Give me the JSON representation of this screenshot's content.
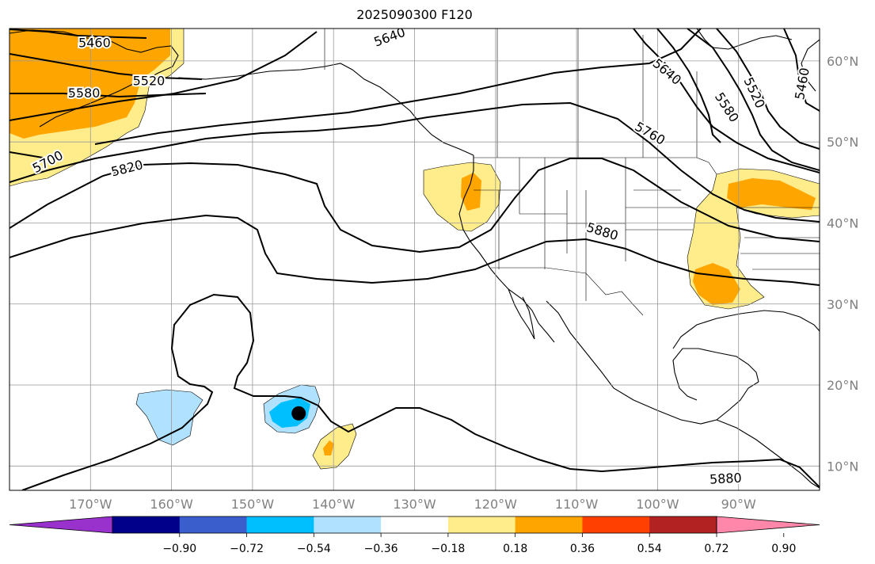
{
  "title": "2025090300 F120",
  "map": {
    "projection": "PlateCarree",
    "extent_lon": [
      -180,
      -80
    ],
    "extent_lat": [
      7,
      64
    ],
    "lon_ticks": [
      {
        "lon": -170,
        "label": "170°W"
      },
      {
        "lon": -160,
        "label": "160°W"
      },
      {
        "lon": -150,
        "label": "150°W"
      },
      {
        "lon": -140,
        "label": "140°W"
      },
      {
        "lon": -130,
        "label": "130°W"
      },
      {
        "lon": -120,
        "label": "120°W"
      },
      {
        "lon": -110,
        "label": "110°W"
      },
      {
        "lon": -100,
        "label": "100°W"
      },
      {
        "lon": -90,
        "label": "90°W"
      }
    ],
    "lat_ticks": [
      {
        "lat": 10,
        "label": "10°N"
      },
      {
        "lat": 20,
        "label": "20°N"
      },
      {
        "lat": 30,
        "label": "30°N"
      },
      {
        "lat": 40,
        "label": "40°N"
      },
      {
        "lat": 50,
        "label": "50°N"
      },
      {
        "lat": 60,
        "label": "60°N"
      }
    ],
    "contour_labels": [
      {
        "text": "5460",
        "lon": -169.5,
        "lat": 62.3,
        "angle": 0
      },
      {
        "text": "5520",
        "lon": -162.8,
        "lat": 57.6,
        "angle": 0
      },
      {
        "text": "5580",
        "lon": -170.8,
        "lat": 56.1,
        "angle": 0
      },
      {
        "text": "5700",
        "lon": -175.3,
        "lat": 47.6,
        "angle": -28
      },
      {
        "text": "5820",
        "lon": -165.5,
        "lat": 46.8,
        "angle": -14
      },
      {
        "text": "5640",
        "lon": -133.1,
        "lat": 63.0,
        "angle": -20
      },
      {
        "text": "5640",
        "lon": -98.8,
        "lat": 58.7,
        "angle": 40
      },
      {
        "text": "5580",
        "lon": -91.4,
        "lat": 54.3,
        "angle": 57
      },
      {
        "text": "5520",
        "lon": -88.0,
        "lat": 56.1,
        "angle": 65
      },
      {
        "text": "5460",
        "lon": -82.2,
        "lat": 57.2,
        "angle": -80
      },
      {
        "text": "5760",
        "lon": -100.9,
        "lat": 51.1,
        "angle": 30
      },
      {
        "text": "5880",
        "lon": -106.8,
        "lat": 39.0,
        "angle": 17
      },
      {
        "text": "5880",
        "lon": -91.6,
        "lat": 8.5,
        "angle": -3
      }
    ],
    "marker": {
      "lon": -144.3,
      "lat": 16.5,
      "color": "#000000"
    },
    "contour_color": "#000000",
    "grid_color": "#999999"
  },
  "colorbar": {
    "ticks": [
      "−0.90",
      "−0.72",
      "−0.54",
      "−0.36",
      "−0.18",
      "0.18",
      "0.36",
      "0.54",
      "0.72",
      "0.90"
    ],
    "colors": [
      "#9932cc",
      "#00008b",
      "#3a5fcd",
      "#00bfff",
      "#b0e2ff",
      "#ffffff",
      "#ffec8b",
      "#ffa500",
      "#ff4000",
      "#b22222",
      "#ff88aa"
    ]
  }
}
